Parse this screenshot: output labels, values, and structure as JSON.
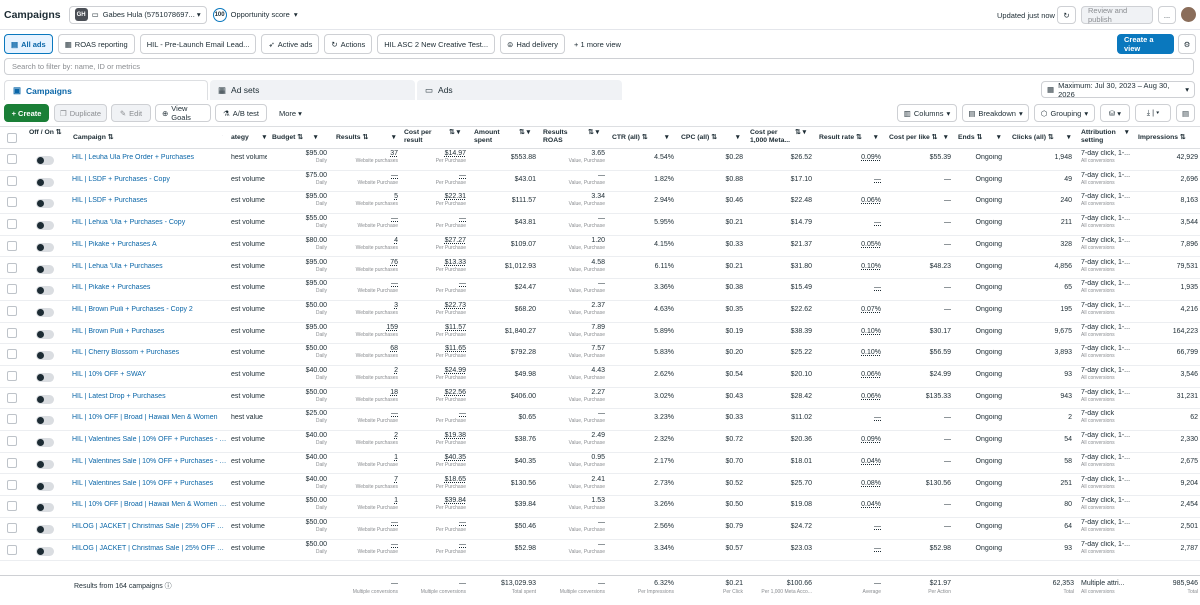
{
  "topbar": {
    "title": "Campaigns",
    "account": "Gabes Hula (5751078697...",
    "account_badge": "GH",
    "score_badge": "100",
    "score_label": "Opportunity score",
    "updated": "Updated just now",
    "review": "Review and publish",
    "more": "..."
  },
  "views": {
    "all_ads": "All ads",
    "roas": "ROAS reporting",
    "hil_email": "HIL - Pre-Launch Email Lead...",
    "active": "Active ads",
    "actions": "Actions",
    "hil_asc": "HIL ASC 2 New Creative Test...",
    "had_delivery": "Had delivery",
    "more_view": "+ 1 more view",
    "create_view": "Create a view"
  },
  "filter": {
    "placeholder": "Search to filter by: name, ID or metrics"
  },
  "levels": {
    "campaigns": "Campaigns",
    "adsets": "Ad sets",
    "ads": "Ads"
  },
  "date_range": "Maximum: Jul 30, 2023 – Aug 30, 2026",
  "toolbar": {
    "create": "+ Create",
    "duplicate": "Duplicate",
    "edit": "Edit",
    "view_goals": "View Goals",
    "ab_test": "A/B test",
    "more": "More",
    "columns": "Columns",
    "breakdown": "Breakdown",
    "grouping": "Grouping"
  },
  "headers": {
    "off_on": "Off / On",
    "campaign": "Campaign",
    "strategy": "ategy",
    "budget": "Budget",
    "results": "Results",
    "cost_per": "Cost per",
    "cost_per2": "result",
    "amount": "Amount",
    "amount2": "spent",
    "roas": "Results",
    "roas2": "ROAS",
    "ctr": "CTR (all)",
    "cpc": "CPC (all)",
    "cpm": "Cost per",
    "cpm2": "1,000 Meta...",
    "rate": "Result rate",
    "cpl": "Cost per like",
    "ends": "Ends",
    "clicks": "Clicks (all)",
    "attr": "Attribution",
    "attr2": "setting",
    "impr": "Impressions"
  },
  "rows": [
    {
      "name": "HIL | Leuha Ula Pre Order + Purchases",
      "strategy": "hest volume",
      "budget": "$95.00",
      "results": "37",
      "results_sub": "Website purchases",
      "cpr": "$14.97",
      "amount": "$553.88",
      "roas": "3.65",
      "roas_sub": "Value, Purchase",
      "ctr": "4.54%",
      "cpc": "$0.28",
      "cpm": "$26.52",
      "rate": "0.09%",
      "cpl": "$55.39",
      "ends": "Ongoing",
      "clicks": "1,948",
      "attr": "7-day click, 1-...",
      "impr": "42,929"
    },
    {
      "name": "HIL | LSDF + Purchases - Copy",
      "strategy": "est volume",
      "budget": "$75.00",
      "results": "—",
      "results_sub": "Website Purchase",
      "cpr": "—",
      "amount": "$43.01",
      "roas": "—",
      "roas_sub": "Value, Purchase",
      "ctr": "1.82%",
      "cpc": "$0.88",
      "cpm": "$17.10",
      "rate": "—",
      "cpl": "—",
      "ends": "Ongoing",
      "clicks": "49",
      "attr": "7-day click, 1-...",
      "impr": "2,696"
    },
    {
      "name": "HIL | LSDF + Purchases",
      "strategy": "est volume",
      "budget": "$95.00",
      "results": "5",
      "results_sub": "Website purchases",
      "cpr": "$22.31",
      "amount": "$111.57",
      "roas": "3.34",
      "roas_sub": "Value, Purchase",
      "ctr": "2.94%",
      "cpc": "$0.46",
      "cpm": "$22.48",
      "rate": "0.06%",
      "cpl": "—",
      "ends": "Ongoing",
      "clicks": "240",
      "attr": "7-day click, 1-...",
      "impr": "8,163"
    },
    {
      "name": "HIL | Lehua 'Ula + Purchases - Copy",
      "strategy": "est volume",
      "budget": "$55.00",
      "results": "—",
      "results_sub": "Website Purchase",
      "cpr": "—",
      "amount": "$43.81",
      "roas": "—",
      "roas_sub": "Value, Purchase",
      "ctr": "5.95%",
      "cpc": "$0.21",
      "cpm": "$14.79",
      "rate": "—",
      "cpl": "—",
      "ends": "Ongoing",
      "clicks": "211",
      "attr": "7-day click, 1-...",
      "impr": "3,544"
    },
    {
      "name": "HIL | Pikake + Purchases A",
      "strategy": "est volume",
      "budget": "$80.00",
      "results": "4",
      "results_sub": "Website purchases",
      "cpr": "$27.27",
      "amount": "$109.07",
      "roas": "1.20",
      "roas_sub": "Value, Purchase",
      "ctr": "4.15%",
      "cpc": "$0.33",
      "cpm": "$21.37",
      "rate": "0.05%",
      "cpl": "—",
      "ends": "Ongoing",
      "clicks": "328",
      "attr": "7-day click, 1-...",
      "impr": "7,896"
    },
    {
      "name": "HIL | Lehua 'Ula + Purchases",
      "strategy": "est volume",
      "budget": "$95.00",
      "results": "76",
      "results_sub": "Website purchases",
      "cpr": "$13.33",
      "amount": "$1,012.93",
      "roas": "4.58",
      "roas_sub": "Value, Purchase",
      "ctr": "6.11%",
      "cpc": "$0.21",
      "cpm": "$31.80",
      "rate": "0.10%",
      "cpl": "$48.23",
      "ends": "Ongoing",
      "clicks": "4,856",
      "attr": "7-day click, 1-...",
      "impr": "79,531"
    },
    {
      "name": "HIL | Pikake + Purchases",
      "strategy": "est volume",
      "budget": "$95.00",
      "results": "—",
      "results_sub": "Website Purchase",
      "cpr": "—",
      "amount": "$24.47",
      "roas": "—",
      "roas_sub": "Value, Purchase",
      "ctr": "3.36%",
      "cpc": "$0.38",
      "cpm": "$15.49",
      "rate": "—",
      "cpl": "—",
      "ends": "Ongoing",
      "clicks": "65",
      "attr": "7-day click, 1-...",
      "impr": "1,935"
    },
    {
      "name": "HIL | Brown Puili + Purchases - Copy 2",
      "strategy": "est volume",
      "budget": "$50.00",
      "results": "3",
      "results_sub": "Website purchases",
      "cpr": "$22.73",
      "amount": "$68.20",
      "roas": "2.37",
      "roas_sub": "Value, Purchase",
      "ctr": "4.63%",
      "cpc": "$0.35",
      "cpm": "$22.62",
      "rate": "0.07%",
      "cpl": "—",
      "ends": "Ongoing",
      "clicks": "195",
      "attr": "7-day click, 1-...",
      "impr": "4,216"
    },
    {
      "name": "HIL | Brown Puili + Purchases",
      "strategy": "est volume",
      "budget": "$95.00",
      "results": "159",
      "results_sub": "Website purchases",
      "cpr": "$11.57",
      "amount": "$1,840.27",
      "roas": "7.89",
      "roas_sub": "Value, Purchase",
      "ctr": "5.89%",
      "cpc": "$0.19",
      "cpm": "$38.39",
      "rate": "0.10%",
      "cpl": "$30.17",
      "ends": "Ongoing",
      "clicks": "9,675",
      "attr": "7-day click, 1-...",
      "impr": "164,223"
    },
    {
      "name": "HIL | Cherry Blossom + Purchases",
      "strategy": "est volume",
      "budget": "$50.00",
      "results": "68",
      "results_sub": "Website purchases",
      "cpr": "$11.65",
      "amount": "$792.28",
      "roas": "7.57",
      "roas_sub": "Value, Purchase",
      "ctr": "5.83%",
      "cpc": "$0.20",
      "cpm": "$25.22",
      "rate": "0.10%",
      "cpl": "$56.59",
      "ends": "Ongoing",
      "clicks": "3,893",
      "attr": "7-day click, 1-...",
      "impr": "66,799"
    },
    {
      "name": "HIL | 10% OFF + SWAY",
      "strategy": "est volume",
      "budget": "$40.00",
      "results": "2",
      "results_sub": "Website purchases",
      "cpr": "$24.99",
      "amount": "$49.98",
      "roas": "4.43",
      "roas_sub": "Value, Purchase",
      "ctr": "2.62%",
      "cpc": "$0.54",
      "cpm": "$20.10",
      "rate": "0.06%",
      "cpl": "$24.99",
      "ends": "Ongoing",
      "clicks": "93",
      "attr": "7-day click, 1-...",
      "impr": "3,546"
    },
    {
      "name": "HIL | Latest Drop + Purchases",
      "strategy": "est volume",
      "budget": "$50.00",
      "results": "18",
      "results_sub": "Website purchases",
      "cpr": "$22.56",
      "amount": "$406.00",
      "roas": "2.27",
      "roas_sub": "Value, Purchase",
      "ctr": "3.02%",
      "cpc": "$0.43",
      "cpm": "$28.42",
      "rate": "0.06%",
      "cpl": "$135.33",
      "ends": "Ongoing",
      "clicks": "943",
      "attr": "7-day click, 1-...",
      "impr": "31,231"
    },
    {
      "name": "HIL | 10% OFF | Broad | Hawaii Men & Women",
      "strategy": "hest value",
      "budget": "$25.00",
      "results": "—",
      "results_sub": "Website Purchase",
      "cpr": "—",
      "amount": "$0.65",
      "roas": "—",
      "roas_sub": "Value, Purchase",
      "ctr": "3.23%",
      "cpc": "$0.33",
      "cpm": "$11.02",
      "rate": "—",
      "cpl": "—",
      "ends": "Ongoing",
      "clicks": "2",
      "attr": "7-day click",
      "impr": "62"
    },
    {
      "name": "HIL | Valentines Sale | 10% OFF + Purchases - Co...",
      "strategy": "est volume",
      "budget": "$40.00",
      "results": "2",
      "results_sub": "Website purchases",
      "cpr": "$19.38",
      "amount": "$38.76",
      "roas": "2.49",
      "roas_sub": "Value, Purchase",
      "ctr": "2.32%",
      "cpc": "$0.72",
      "cpm": "$20.36",
      "rate": "0.09%",
      "cpl": "—",
      "ends": "Ongoing",
      "clicks": "54",
      "attr": "7-day click, 1-...",
      "impr": "2,330"
    },
    {
      "name": "HIL | Valentines Sale | 10% OFF + Purchases - Co...",
      "strategy": "est volume",
      "budget": "$40.00",
      "results": "1",
      "results_sub": "Website Purchase",
      "cpr": "$40.35",
      "amount": "$40.35",
      "roas": "0.95",
      "roas_sub": "Value, Purchase",
      "ctr": "2.17%",
      "cpc": "$0.70",
      "cpm": "$18.01",
      "rate": "0.04%",
      "cpl": "—",
      "ends": "Ongoing",
      "clicks": "58",
      "attr": "7-day click, 1-...",
      "impr": "2,675"
    },
    {
      "name": "HIL | Valentines Sale | 10% OFF + Purchases",
      "strategy": "est volume",
      "budget": "$40.00",
      "results": "7",
      "results_sub": "Website purchases",
      "cpr": "$18.65",
      "amount": "$130.56",
      "roas": "2.41",
      "roas_sub": "Value, Purchase",
      "ctr": "2.73%",
      "cpc": "$0.52",
      "cpm": "$25.70",
      "rate": "0.08%",
      "cpl": "$130.56",
      "ends": "Ongoing",
      "clicks": "251",
      "attr": "7-day click, 1-...",
      "impr": "9,204"
    },
    {
      "name": "HIL | 10% OFF | Broad | Hawaii Men & Women - C...",
      "strategy": "est volume",
      "budget": "$50.00",
      "results": "1",
      "results_sub": "Website Purchase",
      "cpr": "$39.84",
      "amount": "$39.84",
      "roas": "1.53",
      "roas_sub": "Value, Purchase",
      "ctr": "3.26%",
      "cpc": "$0.50",
      "cpm": "$19.08",
      "rate": "0.04%",
      "cpl": "—",
      "ends": "Ongoing",
      "clicks": "80",
      "attr": "7-day click, 1-...",
      "impr": "2,454"
    },
    {
      "name": "HILOG | JACKET | Christmas Sale | 25% OFF + F...",
      "strategy": "est volume",
      "budget": "$50.00",
      "results": "—",
      "results_sub": "Website Purchase",
      "cpr": "—",
      "amount": "$50.46",
      "roas": "—",
      "roas_sub": "Value, Purchase",
      "ctr": "2.56%",
      "cpc": "$0.79",
      "cpm": "$24.72",
      "rate": "—",
      "cpl": "—",
      "ends": "Ongoing",
      "clicks": "64",
      "attr": "7-day click, 1-...",
      "impr": "2,501"
    },
    {
      "name": "HILOG | JACKET | Christmas Sale | 25% OFF + F...",
      "strategy": "est volume",
      "budget": "$50.00",
      "results": "—",
      "results_sub": "Website Purchase",
      "cpr": "—",
      "amount": "$52.98",
      "roas": "—",
      "roas_sub": "Value, Purchase",
      "ctr": "3.34%",
      "cpc": "$0.57",
      "cpm": "$23.03",
      "rate": "—",
      "cpl": "$52.98",
      "ends": "Ongoing",
      "clicks": "93",
      "attr": "7-day click, 1-...",
      "impr": "2,787"
    }
  ],
  "sub": {
    "daily": "Daily",
    "per_purchase": "Per Purchase",
    "all_conv": "All conversions"
  },
  "footer": {
    "label": "Results from 164 campaigns",
    "results": "—",
    "results_sub": "Multiple conversions",
    "cpr": "—",
    "cpr_sub": "Multiple conversions",
    "amount": "$13,029.93",
    "amount_sub": "Total spent",
    "roas": "—",
    "roas_sub": "Multiple conversions",
    "ctr": "6.32%",
    "ctr_sub": "Per Impressions",
    "cpc": "$0.21",
    "cpc_sub": "Per Click",
    "cpm": "$100.66",
    "cpm_sub": "Per 1,000 Meta Acco...",
    "rate": "—",
    "rate_sub": "Average",
    "cpl": "$21.97",
    "cpl_sub": "Per Action",
    "clicks": "62,353",
    "clicks_sub": "Total",
    "attr": "Multiple attri...",
    "attr_sub": "All conversions",
    "impr": "985,946",
    "impr_sub": "Total"
  }
}
